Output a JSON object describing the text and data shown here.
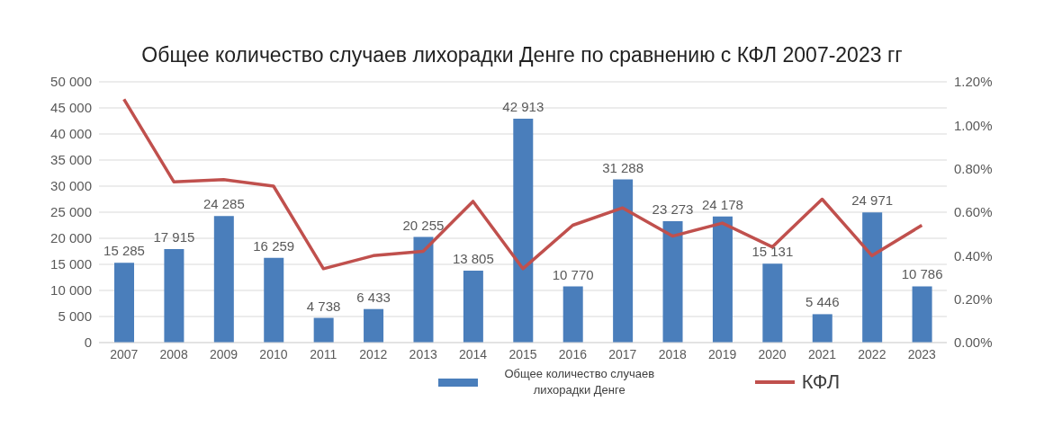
{
  "chart_data": {
    "type": "bar",
    "title": "Общее количество случаев лихорадки Денге по сравнению с КФЛ 2007-2023 гг",
    "categories": [
      "2007",
      "2008",
      "2009",
      "2010",
      "2011",
      "2012",
      "2013",
      "2014",
      "2015",
      "2016",
      "2017",
      "2018",
      "2019",
      "2020",
      "2021",
      "2022",
      "2023"
    ],
    "series": [
      {
        "name": "Общее количество случаев лихорадки Денге",
        "color": "#4a7ebb",
        "values": [
          15285,
          17915,
          24285,
          16259,
          4738,
          6433,
          20255,
          13805,
          42913,
          10770,
          31288,
          23273,
          24178,
          15131,
          5446,
          24971,
          10786
        ],
        "value_labels": [
          "15 285",
          "17 915",
          "24 285",
          "16 259",
          "4 738",
          "6 433",
          "20 255",
          "13 805",
          "42 913",
          "10 770",
          "31 288",
          "23 273",
          "24 178",
          "15 131",
          "5 446",
          "24 971",
          "10 786"
        ]
      },
      {
        "name": "КФЛ",
        "type": "line",
        "axis": "y2",
        "color": "#c0504d",
        "values": [
          1.12,
          0.74,
          0.75,
          0.72,
          0.34,
          0.4,
          0.42,
          0.65,
          0.34,
          0.54,
          0.62,
          0.49,
          0.55,
          0.44,
          0.66,
          0.4,
          0.54
        ]
      }
    ],
    "ylim": [
      0,
      50000
    ],
    "yticks": [
      0,
      {
        "value": 5000,
        "label": "5 000"
      },
      {
        "value": 10000,
        "label": "10 000"
      },
      {
        "value": 15000,
        "label": "15 000"
      },
      {
        "value": 20000,
        "label": "20 000"
      },
      {
        "value": 25000,
        "label": "25 000"
      },
      {
        "value": 30000,
        "label": "30 000"
      },
      {
        "value": 35000,
        "label": "35 000"
      },
      {
        "value": 40000,
        "label": "40 000"
      },
      {
        "value": 45000,
        "label": "45 000"
      },
      {
        "value": 50000,
        "label": "50 000"
      }
    ],
    "y2lim": [
      0,
      1.2
    ],
    "y2ticks": [
      {
        "value": 0,
        "label": "0.00%"
      },
      {
        "value": 0.2,
        "label": "0.20%"
      },
      {
        "value": 0.4,
        "label": "0.40%"
      },
      {
        "value": 0.6,
        "label": "0.60%"
      },
      {
        "value": 0.8,
        "label": "0.80%"
      },
      {
        "value": 1.0,
        "label": "1.00%"
      },
      {
        "value": 1.2,
        "label": "1.20%"
      }
    ],
    "grid": "y",
    "legend": "bottom",
    "marker": "none",
    "line_style": "solid"
  }
}
